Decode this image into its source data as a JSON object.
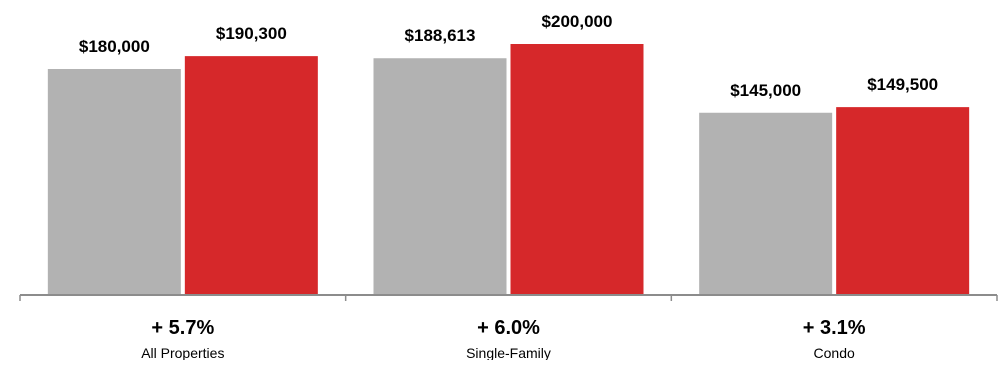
{
  "chart_data": {
    "type": "bar",
    "categories": [
      "All Properties",
      "Single-Family",
      "Condo"
    ],
    "series": [
      {
        "values": [
          180000,
          188613,
          145000
        ],
        "labels": [
          "$180,000",
          "$188,613",
          "$145,000"
        ],
        "color": "#b2b2b2"
      },
      {
        "values": [
          190300,
          200000,
          149500
        ],
        "labels": [
          "$190,300",
          "$200,000",
          "$149,500"
        ],
        "color": "#d6282a"
      }
    ],
    "changes": [
      "+ 5.7%",
      "+ 6.0%",
      "+ 3.1%"
    ],
    "ylim": [
      0,
      200000
    ],
    "grid": false,
    "legend": "none",
    "axis_color": "#8c8c8c"
  }
}
